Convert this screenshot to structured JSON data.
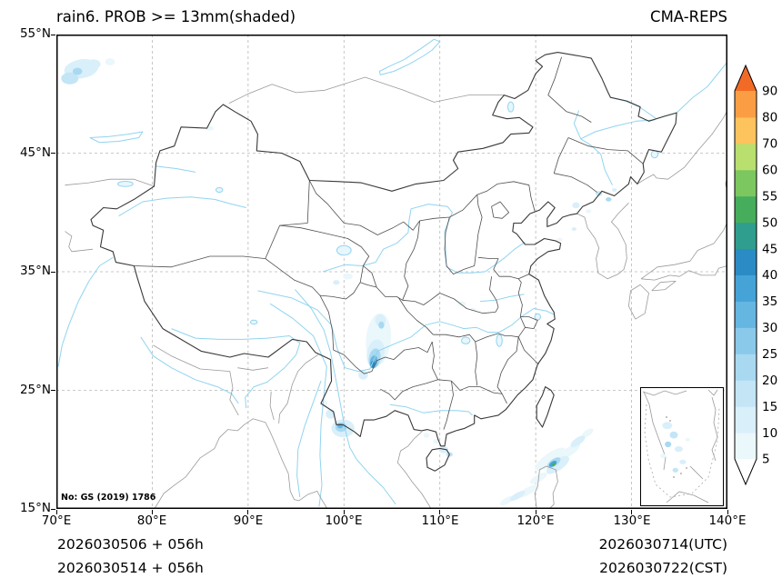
{
  "header": {
    "title": "rain6. PROB >= 13mm(shaded)",
    "model_name": "CMA-REPS"
  },
  "axes": {
    "x_ticks": [
      "70°E",
      "80°E",
      "90°E",
      "100°E",
      "110°E",
      "120°E",
      "130°E",
      "140°E"
    ],
    "y_ticks": [
      "55°N",
      "45°N",
      "35°N",
      "25°N",
      "15°N"
    ],
    "x_range_deg": [
      70,
      140
    ],
    "y_range_deg": [
      15,
      55
    ],
    "grid_step_deg": 10
  },
  "map_note": {
    "license": "No: GS (2019) 1786"
  },
  "footer": {
    "left_line1": "2026030506 + 056h",
    "left_line2": "2026030514 + 056h",
    "right_line1": "2026030714(UTC)",
    "right_line2": "2026030722(CST)"
  },
  "chart_data": {
    "type": "heatmap",
    "title": "rain6. PROB >= 13mm(shaded)",
    "variable": "probability of 6h rainfall >= 13mm (%)",
    "model": "CMA-REPS",
    "init_time_utc": "2026030506",
    "init_time_cst": "2026030514",
    "lead_hours": 56,
    "valid_time_utc": "2026030714",
    "valid_time_cst": "2026030722",
    "extent": {
      "lon": [
        70,
        140
      ],
      "lat": [
        15,
        55
      ]
    },
    "colorbar": {
      "levels": [
        5,
        10,
        15,
        20,
        25,
        30,
        35,
        40,
        45,
        50,
        55,
        60,
        70,
        80,
        90
      ],
      "colors_low_to_high": [
        "#ffffff",
        "#eaf7fb",
        "#d9effa",
        "#c3e5f6",
        "#a8d9f1",
        "#8ac9ea",
        "#66b6e2",
        "#45a3d8",
        "#2b8cc5",
        "#2f9e8e",
        "#46ad5c",
        "#7cc75f",
        "#b9df6e",
        "#fdc35c",
        "#fb9e43",
        "#f26b26"
      ]
    },
    "shaded_regions": [
      {
        "lon": 72.6,
        "lat": 52.1,
        "rx": 1.8,
        "ry": 0.8,
        "rot": -10,
        "level": 10
      },
      {
        "lon": 71.4,
        "lat": 51.3,
        "rx": 0.9,
        "ry": 0.5,
        "rot": 0,
        "level": 15
      },
      {
        "lon": 73.9,
        "lat": 52.5,
        "rx": 0.7,
        "ry": 0.4,
        "rot": 0,
        "level": 10
      },
      {
        "lon": 75.6,
        "lat": 52.7,
        "rx": 0.5,
        "ry": 0.3,
        "rot": 0,
        "level": 5
      },
      {
        "lon": 72.2,
        "lat": 51.9,
        "rx": 0.5,
        "ry": 0.3,
        "rot": 0,
        "level": 20
      },
      {
        "lon": 86.0,
        "lat": 47.1,
        "rx": 0.4,
        "ry": 0.2,
        "rot": 0,
        "level": 5
      },
      {
        "lon": 100.4,
        "lat": 34.6,
        "rx": 0.5,
        "ry": 0.25,
        "rot": 0,
        "level": 5
      },
      {
        "lon": 99.2,
        "lat": 34.1,
        "rx": 0.35,
        "ry": 0.2,
        "rot": 0,
        "level": 10
      },
      {
        "lon": 103.6,
        "lat": 29.3,
        "rx": 1.3,
        "ry": 2.2,
        "rot": 5,
        "level": 5
      },
      {
        "lon": 103.8,
        "lat": 30.9,
        "rx": 0.55,
        "ry": 0.5,
        "rot": 0,
        "level": 10
      },
      {
        "lon": 103.9,
        "lat": 30.5,
        "rx": 0.3,
        "ry": 0.3,
        "rot": 0,
        "level": 20
      },
      {
        "lon": 103.3,
        "lat": 28.1,
        "rx": 0.9,
        "ry": 1.2,
        "rot": 10,
        "level": 10
      },
      {
        "lon": 103.2,
        "lat": 27.7,
        "rx": 0.6,
        "ry": 0.85,
        "rot": 10,
        "level": 20
      },
      {
        "lon": 103.1,
        "lat": 27.4,
        "rx": 0.4,
        "ry": 0.55,
        "rot": 10,
        "level": 30
      },
      {
        "lon": 103.0,
        "lat": 27.2,
        "rx": 0.22,
        "ry": 0.3,
        "rot": 10,
        "level": 40
      },
      {
        "lon": 102.0,
        "lat": 26.3,
        "rx": 0.5,
        "ry": 0.4,
        "rot": 0,
        "level": 10
      },
      {
        "lon": 99.9,
        "lat": 21.8,
        "rx": 1.2,
        "ry": 0.75,
        "rot": 0,
        "level": 10
      },
      {
        "lon": 99.7,
        "lat": 21.9,
        "rx": 0.6,
        "ry": 0.4,
        "rot": 0,
        "level": 20
      },
      {
        "lon": 99.6,
        "lat": 22.0,
        "rx": 0.3,
        "ry": 0.2,
        "rot": 0,
        "level": 30
      },
      {
        "lon": 98.6,
        "lat": 23.0,
        "rx": 0.5,
        "ry": 0.4,
        "rot": 0,
        "level": 10
      },
      {
        "lon": 97.9,
        "lat": 23.9,
        "rx": 0.4,
        "ry": 0.3,
        "rot": 0,
        "level": 5
      },
      {
        "lon": 110.4,
        "lat": 20.0,
        "rx": 0.5,
        "ry": 0.3,
        "rot": 0,
        "level": 10
      },
      {
        "lon": 111.0,
        "lat": 19.6,
        "rx": 0.35,
        "ry": 0.2,
        "rot": 0,
        "level": 15
      },
      {
        "lon": 109.6,
        "lat": 20.7,
        "rx": 0.3,
        "ry": 0.2,
        "rot": 0,
        "level": 5
      },
      {
        "lon": 108.6,
        "lat": 21.2,
        "rx": 0.3,
        "ry": 0.2,
        "rot": 0,
        "level": 5
      },
      {
        "lon": 112.3,
        "lat": 32.3,
        "rx": 0.4,
        "ry": 0.2,
        "rot": 0,
        "level": 5
      },
      {
        "lon": 113.5,
        "lat": 31.8,
        "rx": 0.3,
        "ry": 0.15,
        "rot": 0,
        "level": 5
      },
      {
        "lon": 121.5,
        "lat": 19.2,
        "rx": 1.9,
        "ry": 0.5,
        "rot": -35,
        "level": 5
      },
      {
        "lon": 122.3,
        "lat": 18.7,
        "rx": 1.4,
        "ry": 0.45,
        "rot": -35,
        "level": 10
      },
      {
        "lon": 121.9,
        "lat": 18.9,
        "rx": 0.8,
        "ry": 0.3,
        "rot": -35,
        "level": 20
      },
      {
        "lon": 121.8,
        "lat": 18.8,
        "rx": 0.45,
        "ry": 0.2,
        "rot": -35,
        "level": 35
      },
      {
        "lon": 121.9,
        "lat": 18.75,
        "rx": 0.22,
        "ry": 0.1,
        "rot": -35,
        "level": 50
      },
      {
        "lon": 123.6,
        "lat": 19.9,
        "rx": 1.2,
        "ry": 0.35,
        "rot": -35,
        "level": 5
      },
      {
        "lon": 124.4,
        "lat": 20.7,
        "rx": 0.9,
        "ry": 0.3,
        "rot": -35,
        "level": 10
      },
      {
        "lon": 125.4,
        "lat": 21.4,
        "rx": 0.7,
        "ry": 0.25,
        "rot": -35,
        "level": 5
      },
      {
        "lon": 120.3,
        "lat": 17.6,
        "rx": 1.0,
        "ry": 0.3,
        "rot": -30,
        "level": 5
      },
      {
        "lon": 119.2,
        "lat": 16.5,
        "rx": 1.2,
        "ry": 0.3,
        "rot": -30,
        "level": 5
      },
      {
        "lon": 118.1,
        "lat": 16.1,
        "rx": 0.9,
        "ry": 0.25,
        "rot": -30,
        "level": 10
      },
      {
        "lon": 117.0,
        "lat": 15.7,
        "rx": 0.8,
        "ry": 0.25,
        "rot": -30,
        "level": 5
      },
      {
        "lon": 124.2,
        "lat": 40.6,
        "rx": 0.4,
        "ry": 0.25,
        "rot": 0,
        "level": 10
      },
      {
        "lon": 126.6,
        "lat": 41.6,
        "rx": 0.35,
        "ry": 0.2,
        "rot": 0,
        "level": 15
      },
      {
        "lon": 127.6,
        "lat": 41.1,
        "rx": 0.3,
        "ry": 0.18,
        "rot": 0,
        "level": 20
      },
      {
        "lon": 128.2,
        "lat": 41.9,
        "rx": 0.25,
        "ry": 0.15,
        "rot": 0,
        "level": 10
      },
      {
        "lon": 125.5,
        "lat": 40.1,
        "rx": 0.3,
        "ry": 0.15,
        "rot": 0,
        "level": 5
      },
      {
        "lon": 122.5,
        "lat": 37.7,
        "rx": 0.3,
        "ry": 0.15,
        "rot": 0,
        "level": 5
      },
      {
        "lon": 124.0,
        "lat": 38.6,
        "rx": 0.25,
        "ry": 0.15,
        "rot": 0,
        "level": 10
      }
    ],
    "inset_regions": [
      {
        "x": 0.32,
        "y": 0.32,
        "w": 0.12,
        "h": 0.06,
        "level": 10
      },
      {
        "x": 0.4,
        "y": 0.4,
        "w": 0.1,
        "h": 0.06,
        "level": 15
      },
      {
        "x": 0.33,
        "y": 0.48,
        "w": 0.08,
        "h": 0.05,
        "level": 20
      },
      {
        "x": 0.46,
        "y": 0.52,
        "w": 0.1,
        "h": 0.05,
        "level": 10
      },
      {
        "x": 0.27,
        "y": 0.58,
        "w": 0.07,
        "h": 0.04,
        "level": 5
      },
      {
        "x": 0.51,
        "y": 0.63,
        "w": 0.08,
        "h": 0.04,
        "level": 10
      },
      {
        "x": 0.42,
        "y": 0.7,
        "w": 0.07,
        "h": 0.04,
        "level": 15
      },
      {
        "x": 0.57,
        "y": 0.44,
        "w": 0.06,
        "h": 0.03,
        "level": 5
      }
    ]
  }
}
